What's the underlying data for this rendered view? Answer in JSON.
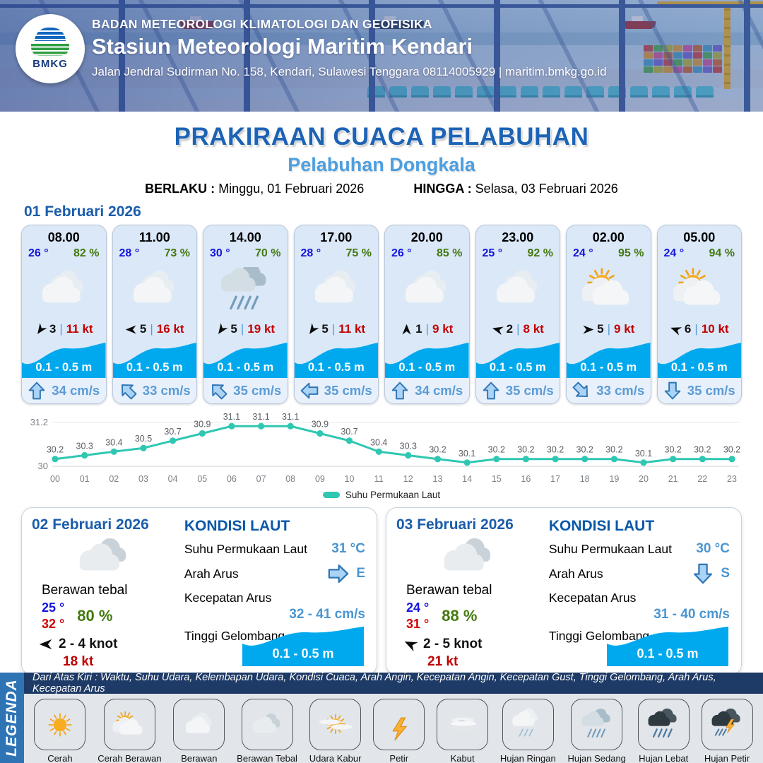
{
  "header": {
    "org": "BADAN METEOROLOGI KLIMATOLOGI DAN GEOFISIKA",
    "station": "Stasiun Meteorologi Maritim Kendari",
    "address": "Jalan Jendral Sudirman No. 158, Kendari, Sulawesi Tenggara  08114005929 | maritim.bmkg.go.id",
    "logo_text": "BMKG"
  },
  "title": {
    "main": "PRAKIRAAN CUACA PELABUHAN",
    "sub": "Pelabuhan Dongkala"
  },
  "validity": {
    "berlaku_label": "BERLAKU :",
    "berlaku_value": "Minggu, 01 Februari 2026",
    "hingga_label": "HINGGA :",
    "hingga_value": "Selasa, 03 Februari 2026"
  },
  "day1": {
    "date": "01 Februari 2026",
    "cards": [
      {
        "time": "08.00",
        "temp": "26 °",
        "humidity": "82 %",
        "weather_icon": "berawan",
        "wind_dir_deg": 125,
        "wind": "3",
        "gust": "11 kt",
        "wave": "0.1 - 0.5 m",
        "current_dir_deg": 0,
        "current": "34 cm/s"
      },
      {
        "time": "11.00",
        "temp": "28 °",
        "humidity": "73 %",
        "weather_icon": "berawan",
        "wind_dir_deg": 180,
        "wind": "5",
        "gust": "16 kt",
        "wave": "0.1 - 0.5 m",
        "current_dir_deg": -45,
        "current": "33 cm/s"
      },
      {
        "time": "14.00",
        "temp": "30 °",
        "humidity": "70 %",
        "weather_icon": "hujan-sedang",
        "wind_dir_deg": 125,
        "wind": "5",
        "gust": "19 kt",
        "wave": "0.1 - 0.5 m",
        "current_dir_deg": -45,
        "current": "35 cm/s"
      },
      {
        "time": "17.00",
        "temp": "28 °",
        "humidity": "75 %",
        "weather_icon": "berawan",
        "wind_dir_deg": 125,
        "wind": "5",
        "gust": "11 kt",
        "wave": "0.1 - 0.5 m",
        "current_dir_deg": -90,
        "current": "35 cm/s"
      },
      {
        "time": "20.00",
        "temp": "26 °",
        "humidity": "85 %",
        "weather_icon": "berawan",
        "wind_dir_deg": 270,
        "wind": "1",
        "gust": "9 kt",
        "wave": "0.1 - 0.5 m",
        "current_dir_deg": 0,
        "current": "34 cm/s"
      },
      {
        "time": "23.00",
        "temp": "25 °",
        "humidity": "92 %",
        "weather_icon": "berawan",
        "wind_dir_deg": 195,
        "wind": "2",
        "gust": "8 kt",
        "wave": "0.1 - 0.5 m",
        "current_dir_deg": 0,
        "current": "35 cm/s"
      },
      {
        "time": "02.00",
        "temp": "24 °",
        "humidity": "95 %",
        "weather_icon": "cerah-berawan",
        "wind_dir_deg": 0,
        "wind": "5",
        "gust": "9 kt",
        "wave": "0.1 - 0.5 m",
        "current_dir_deg": 135,
        "current": "33 cm/s"
      },
      {
        "time": "05.00",
        "temp": "24 °",
        "humidity": "94 %",
        "weather_icon": "cerah-berawan",
        "wind_dir_deg": 200,
        "wind": "6",
        "gust": "10 kt",
        "wave": "0.1 - 0.5 m",
        "current_dir_deg": 180,
        "current": "35 cm/s"
      }
    ]
  },
  "chart_data": {
    "type": "line",
    "x": [
      "00",
      "01",
      "02",
      "03",
      "04",
      "05",
      "06",
      "07",
      "08",
      "09",
      "10",
      "11",
      "12",
      "13",
      "14",
      "15",
      "16",
      "17",
      "18",
      "19",
      "20",
      "21",
      "22",
      "23"
    ],
    "series": [
      {
        "name": "Suhu Permukaan Laut",
        "values": [
          30.2,
          30.3,
          30.4,
          30.5,
          30.7,
          30.9,
          31.1,
          31.1,
          31.1,
          30.9,
          30.7,
          30.4,
          30.3,
          30.2,
          30.1,
          30.2,
          30.2,
          30.2,
          30.2,
          30.2,
          30.1,
          30.2,
          30.2,
          30.2
        ]
      }
    ],
    "ylim": [
      30,
      31.2
    ],
    "yticks": [
      30,
      31.2
    ],
    "unit": "°C",
    "line_color": "#2fc7b2",
    "legend_position": "bottom",
    "grid": true
  },
  "days": [
    {
      "date": "02 Februari 2026",
      "weather_icon": "berawan-tebal",
      "condition": "Berawan tebal",
      "temp_min": "25 °",
      "temp_max": "32 °",
      "humidity": "80 %",
      "wind_dir_deg": 180,
      "wind_range": "2 - 4 knot",
      "gust": "18 kt",
      "sea_title": "KONDISI LAUT",
      "sst_label": "Suhu Permukaan Laut",
      "sst_value": "31 °C",
      "current_dir_label": "Arah Arus",
      "current_dir": "E",
      "current_dir_deg": 90,
      "current_speed_label": "Kecepatan Arus",
      "current_speed": "32 - 41 cm/s",
      "wave_label": "Tinggi Gelombang",
      "wave_value": "0.1 - 0.5 m"
    },
    {
      "date": "03 Februari 2026",
      "weather_icon": "berawan-tebal",
      "condition": "Berawan tebal",
      "temp_min": "24 °",
      "temp_max": "31 °",
      "humidity": "88 %",
      "wind_dir_deg": 205,
      "wind_range": "2 - 5 knot",
      "gust": "21 kt",
      "sea_title": "KONDISI LAUT",
      "sst_label": "Suhu Permukaan Laut",
      "sst_value": "30 °C",
      "current_dir_label": "Arah Arus",
      "current_dir": "S",
      "current_dir_deg": 180,
      "current_speed_label": "Kecepatan Arus",
      "current_speed": "31 - 40 cm/s",
      "wave_label": "Tinggi Gelombang",
      "wave_value": "0.1 - 0.5 m"
    }
  ],
  "legend": {
    "band_label": "LEGENDA",
    "note": "Dari Atas Kiri : Waktu, Suhu Udara, Kelembapan Udara, Kondisi Cuaca, Arah Angin, Kecepatan Angin, Kecepatan Gust, Tinggi Gelombang, Arah Arus, Kecepatan Arus",
    "items": [
      {
        "label": "Cerah",
        "icon": "cerah"
      },
      {
        "label": "Cerah Berawan",
        "icon": "cerah-berawan"
      },
      {
        "label": "Berawan",
        "icon": "berawan"
      },
      {
        "label": "Berawan Tebal",
        "icon": "berawan-tebal"
      },
      {
        "label": "Udara Kabur",
        "icon": "udara-kabur"
      },
      {
        "label": "Petir",
        "icon": "petir"
      },
      {
        "label": "Kabut",
        "icon": "kabut"
      },
      {
        "label": "Hujan Ringan",
        "icon": "hujan-ringan"
      },
      {
        "label": "Hujan Sedang",
        "icon": "hujan-sedang"
      },
      {
        "label": "Hujan Lebat",
        "icon": "hujan-lebat"
      },
      {
        "label": "Hujan Petir",
        "icon": "hujan-petir"
      }
    ]
  }
}
